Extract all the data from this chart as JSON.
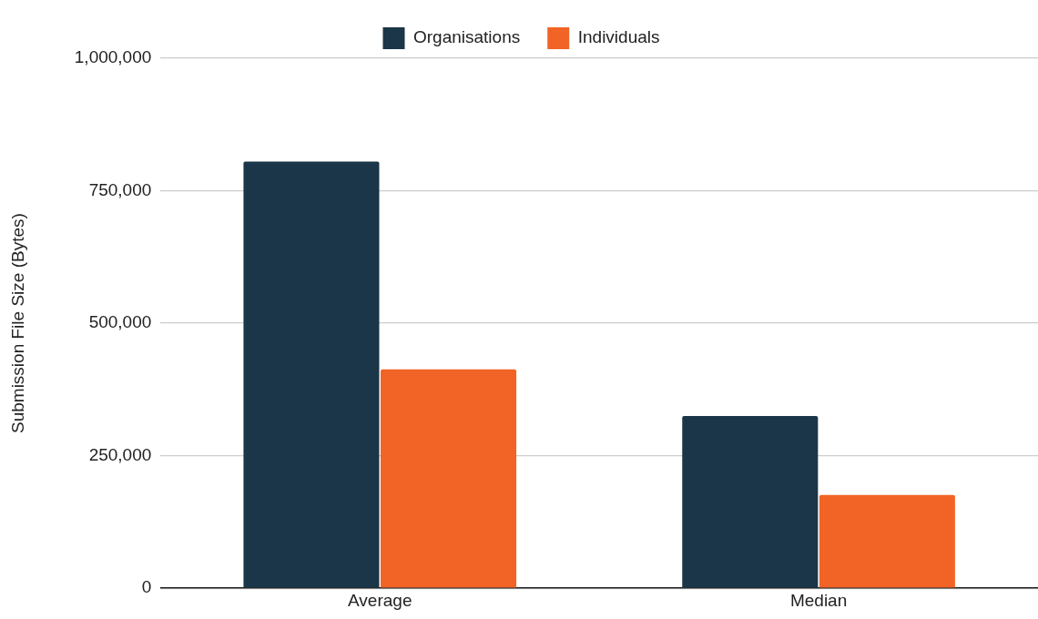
{
  "chart_data": {
    "type": "bar",
    "ylabel": "Submission File Size (Bytes)",
    "categories": [
      "Average",
      "Median"
    ],
    "series": [
      {
        "name": "Organisations",
        "color": "#1a3648",
        "values": [
          805000,
          325000
        ]
      },
      {
        "name": "Individuals",
        "color": "#f26425",
        "values": [
          413000,
          176000
        ]
      }
    ],
    "ylim": [
      0,
      1000000
    ],
    "yticks": [
      0,
      {
        "value": 250000,
        "label": "250,000"
      },
      {
        "value": 500000,
        "label": "500,000"
      },
      {
        "value": 750000,
        "label": "750,000"
      },
      {
        "value": 1000000,
        "label": "1,000,000"
      }
    ],
    "grid": "y",
    "legend": "top"
  }
}
